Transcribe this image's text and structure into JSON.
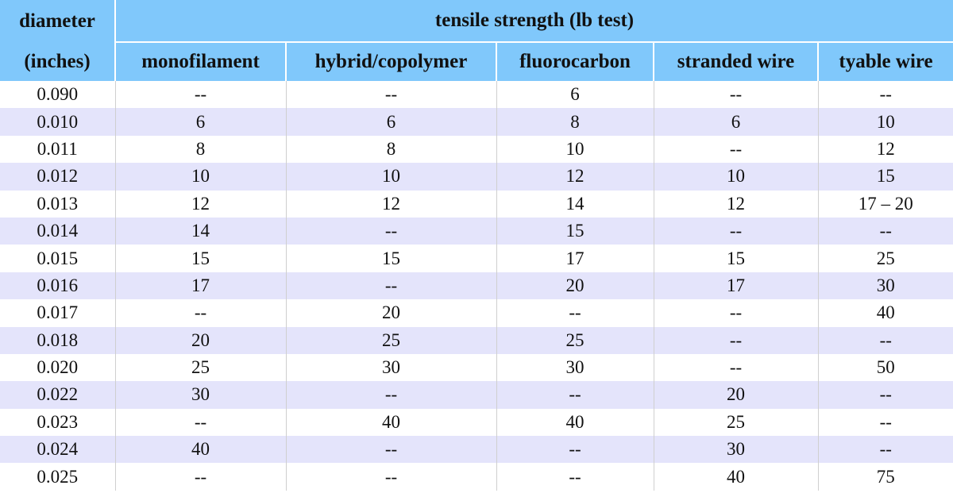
{
  "header": {
    "diameter": "diameter",
    "units": "(inches)",
    "group": "tensile strength (lb test)",
    "columns": [
      "monofilament",
      "hybrid/copolymer",
      "fluorocarbon",
      "stranded wire",
      "tyable wire"
    ]
  },
  "table": {
    "rows": [
      [
        "0.090",
        "--",
        "--",
        "6",
        "--",
        "--"
      ],
      [
        "0.010",
        "6",
        "6",
        "8",
        "6",
        "10"
      ],
      [
        "0.011",
        "8",
        "8",
        "10",
        "--",
        "12"
      ],
      [
        "0.012",
        "10",
        "10",
        "12",
        "10",
        "15"
      ],
      [
        "0.013",
        "12",
        "12",
        "14",
        "12",
        "17 – 20"
      ],
      [
        "0.014",
        "14",
        "--",
        "15",
        "--",
        "--"
      ],
      [
        "0.015",
        "15",
        "15",
        "17",
        "15",
        "25"
      ],
      [
        "0.016",
        "17",
        "--",
        "20",
        "17",
        "30"
      ],
      [
        "0.017",
        "--",
        "20",
        "--",
        "--",
        "40"
      ],
      [
        "0.018",
        "20",
        "25",
        "25",
        "--",
        "--"
      ],
      [
        "0.020",
        "25",
        "30",
        "30",
        "--",
        "50"
      ],
      [
        "0.022",
        "30",
        "--",
        "--",
        "20",
        "--"
      ],
      [
        "0.023",
        "--",
        "40",
        "40",
        "25",
        "--"
      ],
      [
        "0.024",
        "40",
        "--",
        "--",
        "30",
        "--"
      ],
      [
        "0.025",
        "--",
        "--",
        "--",
        "40",
        "75"
      ]
    ]
  }
}
